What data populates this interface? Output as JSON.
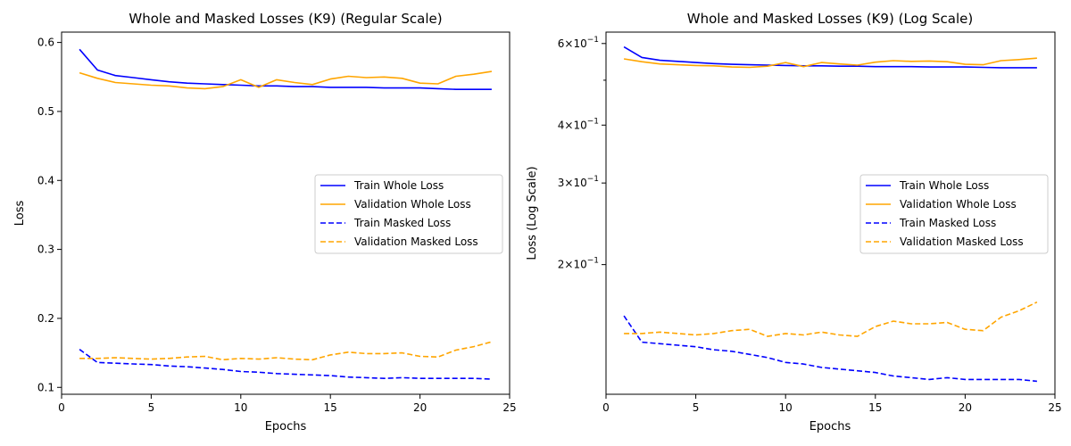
{
  "chart_data": [
    {
      "type": "line",
      "title": "Whole and Masked Losses (K9) (Regular Scale)",
      "xlabel": "Epochs",
      "ylabel": "Loss",
      "xlim": [
        0,
        25
      ],
      "ylim": [
        0.09,
        0.615
      ],
      "x_ticks": [
        0,
        5,
        10,
        15,
        20,
        25
      ],
      "y_ticks": [
        0.1,
        0.2,
        0.3,
        0.4,
        0.5,
        0.6
      ],
      "y_tick_labels": [
        "0.1",
        "0.2",
        "0.3",
        "0.4",
        "0.5",
        "0.6"
      ],
      "yscale": "linear",
      "grid": false,
      "legend_position": "center-right",
      "x": [
        1,
        2,
        3,
        4,
        5,
        6,
        7,
        8,
        9,
        10,
        11,
        12,
        13,
        14,
        15,
        16,
        17,
        18,
        19,
        20,
        21,
        22,
        23,
        24
      ],
      "series": [
        {
          "name": "Train Whole Loss",
          "color": "#0000ff",
          "style": "solid",
          "values": [
            0.59,
            0.56,
            0.552,
            0.549,
            0.546,
            0.543,
            0.541,
            0.54,
            0.539,
            0.538,
            0.537,
            0.537,
            0.536,
            0.536,
            0.535,
            0.535,
            0.535,
            0.534,
            0.534,
            0.534,
            0.533,
            0.532,
            0.532,
            0.532
          ]
        },
        {
          "name": "Validation Whole Loss",
          "color": "#ffa500",
          "style": "solid",
          "values": [
            0.556,
            0.548,
            0.542,
            0.54,
            0.538,
            0.537,
            0.534,
            0.533,
            0.536,
            0.546,
            0.535,
            0.546,
            0.542,
            0.539,
            0.547,
            0.551,
            0.549,
            0.55,
            0.548,
            0.541,
            0.54,
            0.551,
            0.554,
            0.558
          ]
        },
        {
          "name": "Train Masked Loss",
          "color": "#0000ff",
          "style": "dashed",
          "values": [
            0.155,
            0.136,
            0.135,
            0.134,
            0.133,
            0.131,
            0.13,
            0.128,
            0.126,
            0.123,
            0.122,
            0.12,
            0.119,
            0.118,
            0.117,
            0.115,
            0.114,
            0.113,
            0.114,
            0.113,
            0.113,
            0.113,
            0.113,
            0.112
          ]
        },
        {
          "name": "Validation Masked Loss",
          "color": "#ffa500",
          "style": "dashed",
          "values": [
            0.142,
            0.142,
            0.143,
            0.142,
            0.141,
            0.142,
            0.144,
            0.145,
            0.14,
            0.142,
            0.141,
            0.143,
            0.141,
            0.14,
            0.147,
            0.151,
            0.149,
            0.149,
            0.15,
            0.145,
            0.144,
            0.154,
            0.159,
            0.166
          ]
        }
      ]
    },
    {
      "type": "line",
      "title": "Whole and Masked Losses (K9) (Log Scale)",
      "xlabel": "Epochs",
      "ylabel": "Loss (Log Scale)",
      "xlim": [
        0,
        25
      ],
      "ylim": [
        0.105,
        0.635
      ],
      "x_ticks": [
        0,
        5,
        10,
        15,
        20,
        25
      ],
      "y_ticks": [
        0.2,
        0.3,
        0.4,
        0.6
      ],
      "y_tick_labels": [
        {
          "base": "2×10",
          "exp": "−1"
        },
        {
          "base": "3×10",
          "exp": "−1"
        },
        {
          "base": "4×10",
          "exp": "−1"
        },
        {
          "base": "6×10",
          "exp": "−1"
        }
      ],
      "y_minor_ticks": [
        0.5
      ],
      "yscale": "log",
      "grid": false,
      "legend_position": "center-right",
      "x": [
        1,
        2,
        3,
        4,
        5,
        6,
        7,
        8,
        9,
        10,
        11,
        12,
        13,
        14,
        15,
        16,
        17,
        18,
        19,
        20,
        21,
        22,
        23,
        24
      ],
      "series": [
        {
          "name": "Train Whole Loss",
          "color": "#0000ff",
          "style": "solid",
          "values": [
            0.59,
            0.56,
            0.552,
            0.549,
            0.546,
            0.543,
            0.541,
            0.54,
            0.539,
            0.538,
            0.537,
            0.537,
            0.536,
            0.536,
            0.535,
            0.535,
            0.535,
            0.534,
            0.534,
            0.534,
            0.533,
            0.532,
            0.532,
            0.532
          ]
        },
        {
          "name": "Validation Whole Loss",
          "color": "#ffa500",
          "style": "solid",
          "values": [
            0.556,
            0.548,
            0.542,
            0.54,
            0.538,
            0.537,
            0.534,
            0.533,
            0.536,
            0.546,
            0.535,
            0.546,
            0.542,
            0.539,
            0.547,
            0.551,
            0.549,
            0.55,
            0.548,
            0.541,
            0.54,
            0.551,
            0.554,
            0.558
          ]
        },
        {
          "name": "Train Masked Loss",
          "color": "#0000ff",
          "style": "dashed",
          "values": [
            0.155,
            0.136,
            0.135,
            0.134,
            0.133,
            0.131,
            0.13,
            0.128,
            0.126,
            0.123,
            0.122,
            0.12,
            0.119,
            0.118,
            0.117,
            0.115,
            0.114,
            0.113,
            0.114,
            0.113,
            0.113,
            0.113,
            0.113,
            0.112
          ]
        },
        {
          "name": "Validation Masked Loss",
          "color": "#ffa500",
          "style": "dashed",
          "values": [
            0.142,
            0.142,
            0.143,
            0.142,
            0.141,
            0.142,
            0.144,
            0.145,
            0.14,
            0.142,
            0.141,
            0.143,
            0.141,
            0.14,
            0.147,
            0.151,
            0.149,
            0.149,
            0.15,
            0.145,
            0.144,
            0.154,
            0.159,
            0.166
          ]
        }
      ]
    }
  ]
}
